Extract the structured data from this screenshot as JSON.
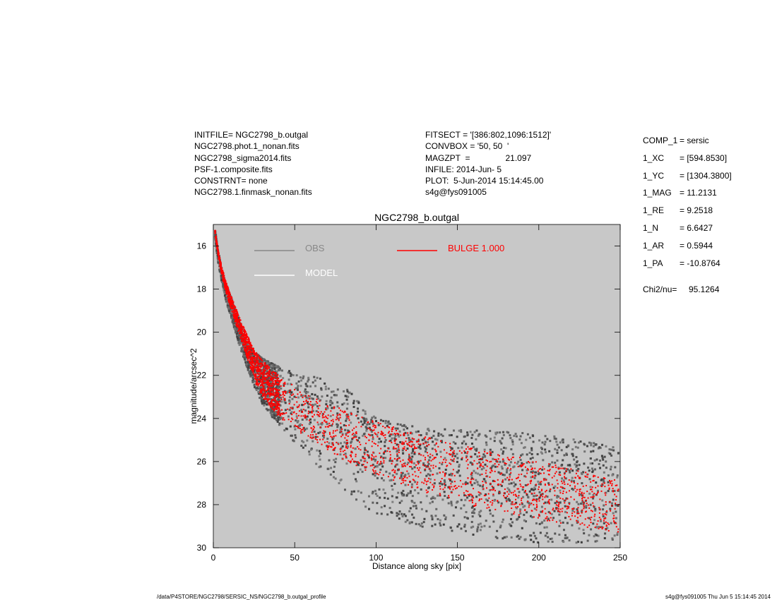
{
  "header_left": [
    "INITFILE= NGC2798_b.outgal",
    "NGC2798.phot.1_nonan.fits",
    "NGC2798_sigma2014.fits",
    "PSF-1.composite.fits",
    "CONSTRNT= none",
    "NGC2798.1.finmask_nonan.fits"
  ],
  "header_mid": [
    "FITSECT = '[386:802,1096:1512]'",
    "CONVBOX = '50, 50  '",
    "MAGZPT  =               21.097",
    "INFILE: 2014-Jun- 5",
    "PLOT:  5-Jun-2014 15:14:45.00",
    "s4g@fys091005"
  ],
  "params": [
    {
      "key": "COMP_1",
      "value": "= sersic"
    },
    {
      "key": "1_XC",
      "value": "= [594.8530]"
    },
    {
      "key": "1_YC",
      "value": "= [1304.3800]"
    },
    {
      "key": "1_MAG",
      "value": "= 11.2131"
    },
    {
      "key": "1_RE",
      "value": "= 9.2518"
    },
    {
      "key": "1_N",
      "value": "= 6.6427"
    },
    {
      "key": "1_AR",
      "value": "= 0.5944"
    },
    {
      "key": "1_PA",
      "value": "= -10.8764"
    }
  ],
  "chi": {
    "label": "Chi2/nu=",
    "value": "95.1264"
  },
  "footer": {
    "left": "/data/P4STORE/NGC2798/SERSIC_NS/NGC2798_b.outgal_profile",
    "right": "s4g@fys091005  Thu Jun  5 15:14:45 2014"
  },
  "colors": {
    "background": "#c8c8c8",
    "obs": "#555555",
    "model": "#ffffff",
    "bulge": "#ff0000"
  },
  "chart_data": {
    "type": "scatter",
    "title": "NGC2798_b.outgal",
    "xlabel": "Distance along sky [pix]",
    "ylabel": "magnitude/arcsec^2",
    "xlim": [
      0,
      250
    ],
    "ylim": [
      30,
      15
    ],
    "xticks": [
      0,
      50,
      100,
      150,
      200,
      250
    ],
    "yticks": [
      16,
      18,
      20,
      22,
      24,
      26,
      28,
      30
    ],
    "legend": [
      {
        "name": "OBS",
        "color": "#888888"
      },
      {
        "name": "BULGE  1.000",
        "color": "#ff0000"
      },
      {
        "name": "MODEL",
        "color": "#ffffff"
      }
    ],
    "series": [
      {
        "name": "OBS",
        "color": "#555555",
        "x": [
          1,
          3,
          5,
          8,
          12,
          16,
          20,
          25,
          30,
          40,
          50,
          60,
          70,
          80,
          90,
          100,
          125,
          150,
          175,
          200,
          225,
          250
        ],
        "y_center": [
          15.4,
          16.5,
          17.3,
          18.2,
          19.1,
          20.0,
          20.9,
          21.6,
          22.2,
          22.9,
          23.4,
          23.8,
          24.2,
          24.5,
          24.8,
          25.1,
          25.6,
          26.0,
          26.4,
          26.7,
          27.0,
          27.3
        ],
        "y_bright": [
          15.2,
          16.2,
          17.0,
          17.8,
          18.6,
          19.4,
          20.4,
          20.9,
          21.2,
          21.6,
          21.9,
          22.0,
          22.2,
          22.5,
          23.2,
          24.0,
          24.4,
          24.5,
          24.6,
          24.7,
          25.0,
          25.4
        ],
        "y_faint": [
          15.6,
          16.8,
          17.6,
          18.6,
          19.6,
          20.6,
          21.5,
          22.5,
          23.3,
          24.3,
          25.1,
          25.9,
          26.6,
          27.3,
          28.0,
          28.5,
          29.0,
          29.3,
          29.6,
          29.8,
          29.9,
          30.0
        ]
      },
      {
        "name": "BULGE  1.000",
        "color": "#ff0000",
        "x": [
          1,
          3,
          5,
          8,
          12,
          16,
          20,
          25,
          30,
          40,
          50,
          60,
          70,
          80,
          90,
          100,
          125,
          150,
          175,
          200,
          225,
          250
        ],
        "y_bright": [
          15.1,
          16.2,
          16.9,
          17.7,
          18.5,
          19.3,
          20.0,
          20.8,
          21.3,
          22.0,
          22.5,
          22.9,
          23.3,
          23.6,
          23.9,
          24.1,
          24.7,
          25.2,
          25.6,
          26.0,
          26.4,
          26.9
        ],
        "y_faint": [
          15.4,
          16.5,
          17.3,
          18.2,
          19.2,
          20.1,
          21.0,
          22.2,
          23.0,
          23.9,
          24.5,
          25.0,
          25.5,
          25.9,
          26.3,
          26.6,
          27.3,
          27.9,
          28.3,
          28.7,
          29.0,
          29.3
        ]
      }
    ]
  }
}
